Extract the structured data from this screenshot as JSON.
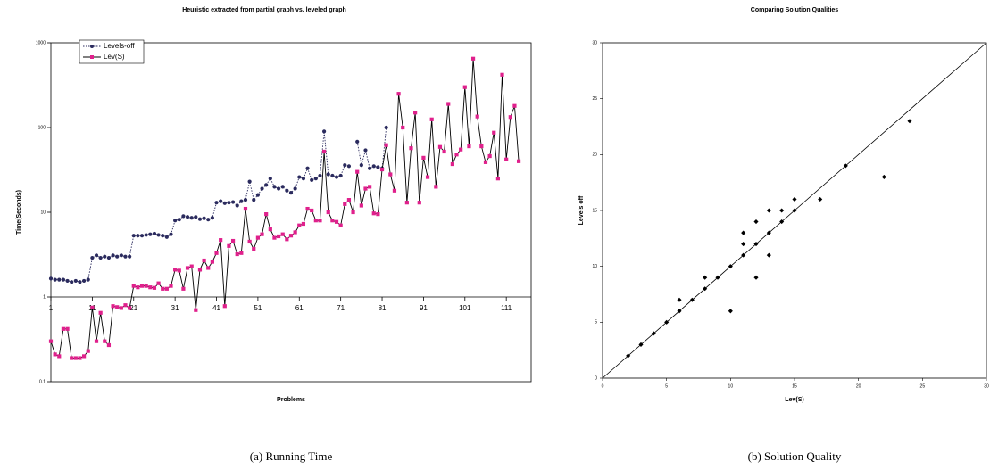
{
  "chart_data": [
    {
      "type": "line",
      "title": "Heuristic extracted from partial graph vs. leveled graph",
      "xlabel": "Problems",
      "ylabel": "Time(Seconds)",
      "caption": "(a) Running Time",
      "log_y": true,
      "ylim": [
        0.1,
        1000
      ],
      "yticks": [
        0.1,
        1,
        10,
        100,
        1000
      ],
      "xlim": [
        1,
        117
      ],
      "xticks": [
        1,
        11,
        21,
        31,
        41,
        51,
        61,
        71,
        81,
        91,
        101,
        111
      ],
      "x_axis_crosses": 1,
      "legend": "upper left",
      "x": [
        1,
        2,
        3,
        4,
        5,
        6,
        7,
        8,
        9,
        10,
        11,
        12,
        13,
        14,
        15,
        16,
        17,
        18,
        19,
        20,
        21,
        22,
        23,
        24,
        25,
        26,
        27,
        28,
        29,
        30,
        31,
        32,
        33,
        34,
        35,
        36,
        37,
        38,
        39,
        40,
        41,
        42,
        43,
        44,
        45,
        46,
        47,
        48,
        49,
        50,
        51,
        52,
        53,
        54,
        55,
        56,
        57,
        58,
        59,
        60,
        61,
        62,
        63,
        64,
        65,
        66,
        67,
        68,
        69,
        70,
        71,
        72,
        73,
        74,
        75,
        76,
        77,
        78,
        79,
        80,
        81,
        82,
        83,
        84,
        85,
        86,
        87,
        88,
        89,
        90,
        91,
        92,
        93,
        94,
        95,
        96,
        97,
        98,
        99,
        100,
        101,
        102,
        103,
        104,
        105,
        106,
        107,
        108,
        109,
        110,
        111,
        112,
        113,
        114
      ],
      "series": [
        {
          "name": "Levels-off",
          "color": "#2b2b5e",
          "line_color": "#2b2b5e",
          "dash": true,
          "marker": "circle",
          "values": [
            1.65,
            1.6,
            1.6,
            1.6,
            1.55,
            1.5,
            1.55,
            1.5,
            1.55,
            1.6,
            2.9,
            3.1,
            2.9,
            3.0,
            2.9,
            3.1,
            3.0,
            3.1,
            3.0,
            3.0,
            5.3,
            5.3,
            5.3,
            5.4,
            5.5,
            5.6,
            5.4,
            5.3,
            5.1,
            5.5,
            8.0,
            8.2,
            9.0,
            8.8,
            8.6,
            8.8,
            8.3,
            8.5,
            8.2,
            8.6,
            13,
            13.5,
            12.8,
            13,
            13.2,
            12,
            13.5,
            14,
            23,
            14,
            16,
            19,
            21,
            25,
            20,
            19,
            20,
            18,
            17,
            19,
            26,
            25,
            33,
            24,
            25,
            27,
            90,
            28,
            27,
            26,
            27,
            36,
            35,
            null,
            68,
            36,
            54,
            33,
            35,
            34,
            33,
            100,
            null,
            null,
            null,
            null,
            null,
            null,
            null,
            null,
            null,
            null,
            null,
            null,
            null,
            null,
            null,
            null,
            null,
            null,
            null,
            null,
            null,
            null,
            null,
            null,
            null,
            null,
            null,
            null,
            null,
            null,
            null,
            null
          ]
        },
        {
          "name": "Lev(S)",
          "color": "#e0208c",
          "line_color": "#000000",
          "dash": false,
          "marker": "square",
          "values": [
            0.3,
            0.21,
            0.2,
            0.42,
            0.42,
            0.19,
            0.19,
            0.19,
            0.2,
            0.23,
            0.75,
            0.3,
            0.65,
            0.3,
            0.27,
            0.78,
            0.76,
            0.74,
            0.8,
            0.74,
            1.35,
            1.3,
            1.35,
            1.35,
            1.3,
            1.28,
            1.45,
            1.25,
            1.25,
            1.35,
            2.1,
            2.05,
            1.25,
            2.2,
            2.3,
            0.7,
            2.1,
            2.7,
            2.2,
            2.6,
            3.3,
            4.7,
            0.78,
            4.0,
            4.6,
            3.2,
            3.3,
            11,
            4.5,
            3.7,
            5.0,
            5.5,
            9.5,
            6.3,
            5.0,
            5.2,
            5.5,
            4.8,
            5.3,
            5.8,
            7.0,
            7.3,
            11,
            10.5,
            8,
            8,
            52,
            10,
            8,
            7.7,
            7.0,
            12.5,
            14,
            10,
            30,
            12,
            19,
            20,
            9.7,
            9.5,
            32,
            62,
            28,
            18,
            250,
            100,
            13,
            57,
            150,
            13,
            44,
            26,
            125,
            20,
            59,
            52,
            190,
            37,
            48,
            55,
            300,
            60,
            650,
            135,
            60,
            39,
            46,
            87,
            25,
            420,
            42,
            133,
            180,
            40
          ]
        }
      ]
    },
    {
      "type": "scatter",
      "title": "Comparing Solution Qualities",
      "xlabel": "Lev(S)",
      "ylabel": "Levels off",
      "caption": "(b) Solution Quality",
      "xlim": [
        0,
        30
      ],
      "ylim": [
        0,
        30
      ],
      "xticks": [
        0,
        5,
        10,
        15,
        20,
        25,
        30
      ],
      "yticks": [
        0,
        5,
        10,
        15,
        20,
        25,
        30
      ],
      "diagonal": true,
      "color": "#000000",
      "x": [
        2,
        3,
        4,
        5,
        6,
        6,
        7,
        8,
        8,
        9,
        10,
        10,
        11,
        11,
        11,
        12,
        12,
        12,
        13,
        13,
        13,
        14,
        14,
        15,
        15,
        17,
        19,
        22,
        24
      ],
      "values": [
        2,
        3,
        4,
        5,
        6,
        7,
        7,
        8,
        9,
        9,
        10,
        6,
        11,
        12,
        13,
        12,
        14,
        9,
        13,
        15,
        11,
        14,
        15,
        15,
        16,
        16,
        19,
        18,
        23
      ]
    }
  ]
}
